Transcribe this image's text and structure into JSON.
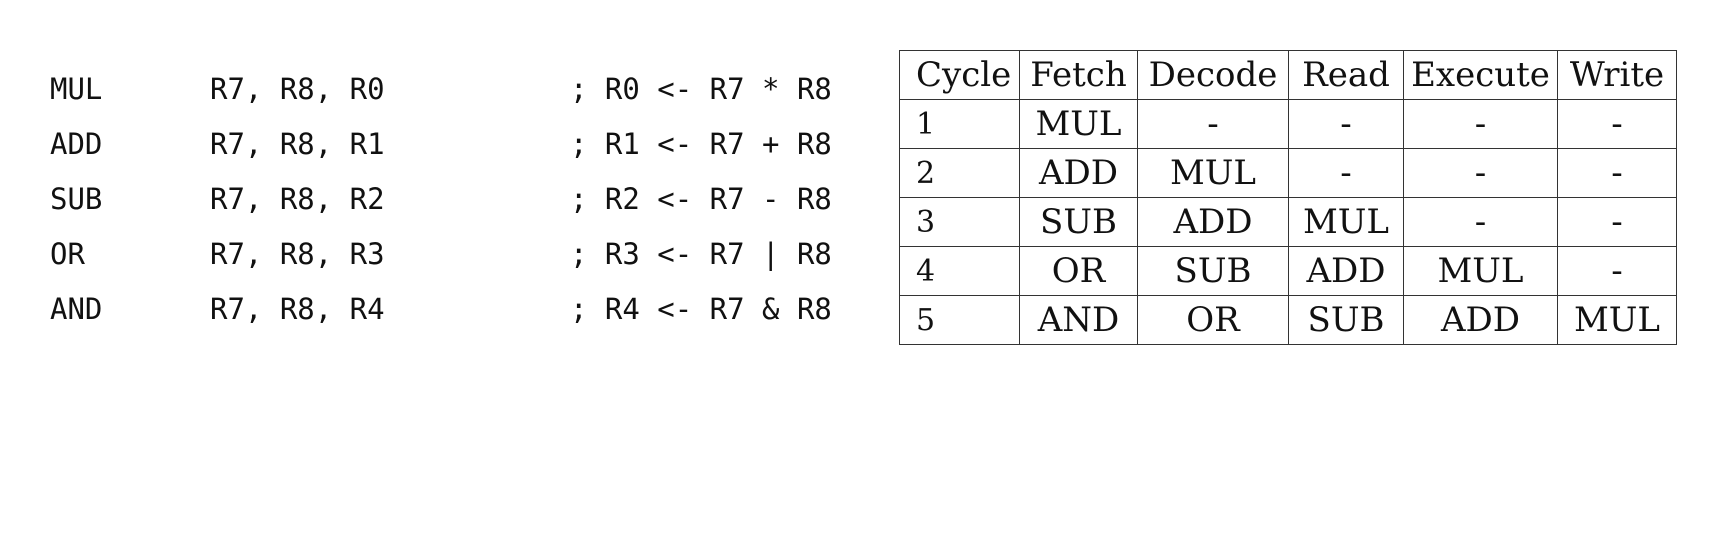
{
  "code": {
    "lines": [
      {
        "op": "MUL",
        "args": "R7, R8, R0",
        "comment": "; R0 <- R7 * R8"
      },
      {
        "op": "ADD",
        "args": "R7, R8, R1",
        "comment": "; R1 <- R7 + R8"
      },
      {
        "op": "SUB",
        "args": "R7, R8, R2",
        "comment": "; R2 <- R7 - R8"
      },
      {
        "op": "OR",
        "args": "R7, R8, R3",
        "comment": "; R3 <- R7 | R8"
      },
      {
        "op": "AND",
        "args": "R7, R8, R4",
        "comment": "; R4 <- R7 & R8"
      }
    ]
  },
  "pipeline": {
    "headers": [
      "Cycle",
      "Fetch",
      "Decode",
      "Read",
      "Execute",
      "Write"
    ],
    "rows": [
      [
        "1",
        "MUL",
        "-",
        "-",
        "-",
        "-"
      ],
      [
        "2",
        "ADD",
        "MUL",
        "-",
        "-",
        "-"
      ],
      [
        "3",
        "SUB",
        "ADD",
        "MUL",
        "-",
        "-"
      ],
      [
        "4",
        "OR",
        "SUB",
        "ADD",
        "MUL",
        "-"
      ],
      [
        "5",
        "AND",
        "OR",
        "SUB",
        "ADD",
        "MUL"
      ]
    ]
  }
}
